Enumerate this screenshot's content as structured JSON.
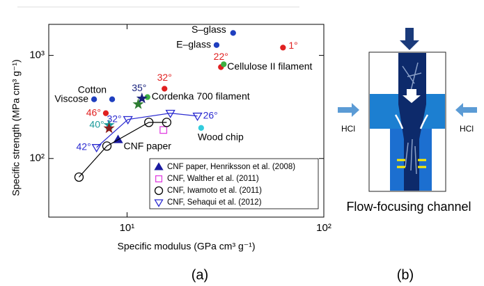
{
  "chart_data": {
    "type": "scatter",
    "x_label": "Specific modulus (GPa cm³ g⁻¹)",
    "y_label": "Specific strength (MPa cm³ g⁻¹)",
    "log_x": true,
    "log_y": true,
    "xlim": [
      4,
      100
    ],
    "ylim": [
      27,
      2000
    ],
    "xticks": [
      {
        "value": 10,
        "label": "10¹"
      },
      {
        "value": 100,
        "label": "10²"
      }
    ],
    "yticks": [
      {
        "value": 100,
        "label": "10²"
      },
      {
        "value": 1000,
        "label": "10³"
      }
    ],
    "points": [
      {
        "label": "S–glass",
        "x": 34.6,
        "y": 1650,
        "color": "#1f3fbf",
        "label_color": "#000000",
        "marker": "dot"
      },
      {
        "label": "E–glass",
        "x": 28.5,
        "y": 1260,
        "color": "#1f3fbf",
        "label_color": "#000000",
        "marker": "dot"
      },
      {
        "label": "1°",
        "x": 62,
        "y": 1190,
        "color": "#e02020",
        "label_color": "#e02020",
        "marker": "dot"
      },
      {
        "label": "22°",
        "x": 30,
        "y": 770,
        "color": "#e02020",
        "label_color": "#e02020",
        "marker": "dot"
      },
      {
        "label": "Cellulose II filament",
        "x": 31,
        "y": 820,
        "color": "#3cb043",
        "label_color": "#000000",
        "marker": "dot"
      },
      {
        "label": "32°",
        "x": 15.5,
        "y": 475,
        "color": "#e02020",
        "label_color": "#e02020",
        "marker": "dot"
      },
      {
        "label": "Cordenka 700 filament",
        "x": 12.7,
        "y": 394,
        "color": "#3cb043",
        "label_color": "#000000",
        "marker": "dot"
      },
      {
        "label": "35°",
        "x": 11.9,
        "y": 382,
        "color": "#1a237e",
        "label_color": "#1a237e",
        "marker": "star"
      },
      {
        "x": 11.4,
        "y": 336,
        "color": "#2e7d32",
        "marker": "star"
      },
      {
        "label": "Cotton",
        "x": 8.4,
        "y": 375,
        "color": "#1f3fbf",
        "label_color": "#000000",
        "marker": "dot"
      },
      {
        "label": "Viscose",
        "x": 6.8,
        "y": 375,
        "color": "#1f3fbf",
        "label_color": "#000000",
        "marker": "dot"
      },
      {
        "label": "46°",
        "x": 7.8,
        "y": 275,
        "color": "#e02020",
        "label_color": "#e02020",
        "marker": "dot"
      },
      {
        "label": "40°",
        "x": 8.1,
        "y": 211,
        "color": "#1a9a9a",
        "label_color": "#1a9a9a",
        "marker": "star"
      },
      {
        "x": 8.1,
        "y": 196,
        "color": "#8b1a1a",
        "marker": "star"
      },
      {
        "label": "Wood chip",
        "x": 23.8,
        "y": 198,
        "color": "#33ccdd",
        "label_color": "#000000",
        "marker": "dot"
      }
    ],
    "series": [
      {
        "name": "CNF paper, Henriksson et al. (2008)",
        "color": "#1a1aa0",
        "marker": "triangle",
        "filled": true,
        "line": false,
        "x": [
          9.0
        ],
        "values": [
          152
        ],
        "point_labels": [
          "CNF paper"
        ]
      },
      {
        "name": "CNF, Walther et al. (2011)",
        "color": "#e040e0",
        "marker": "square",
        "filled": false,
        "line": false,
        "x": [
          15.3
        ],
        "values": [
          189
        ]
      },
      {
        "name": "CNF, Iwamoto et al. (2011)",
        "color": "#000000",
        "marker": "circle",
        "filled": false,
        "line": true,
        "x": [
          5.7,
          7.9,
          12.9,
          15.9
        ],
        "values": [
          66,
          132,
          224,
          224
        ]
      },
      {
        "name": "CNF, Sehaqui et al. (2012)",
        "color": "#2a2ad0",
        "marker": "triangle-down",
        "filled": false,
        "line": true,
        "x": [
          7.0,
          10.1,
          16.6,
          22.8
        ],
        "values": [
          128,
          239,
          275,
          258
        ],
        "point_labels": [
          "42°",
          "32°",
          null,
          "26°"
        ]
      }
    ]
  },
  "diagram": {
    "label": "Flow-focusing channel",
    "left_inlet": "HCl",
    "right_inlet": "HCl"
  },
  "panel_labels": [
    "(a)",
    "(b)"
  ]
}
